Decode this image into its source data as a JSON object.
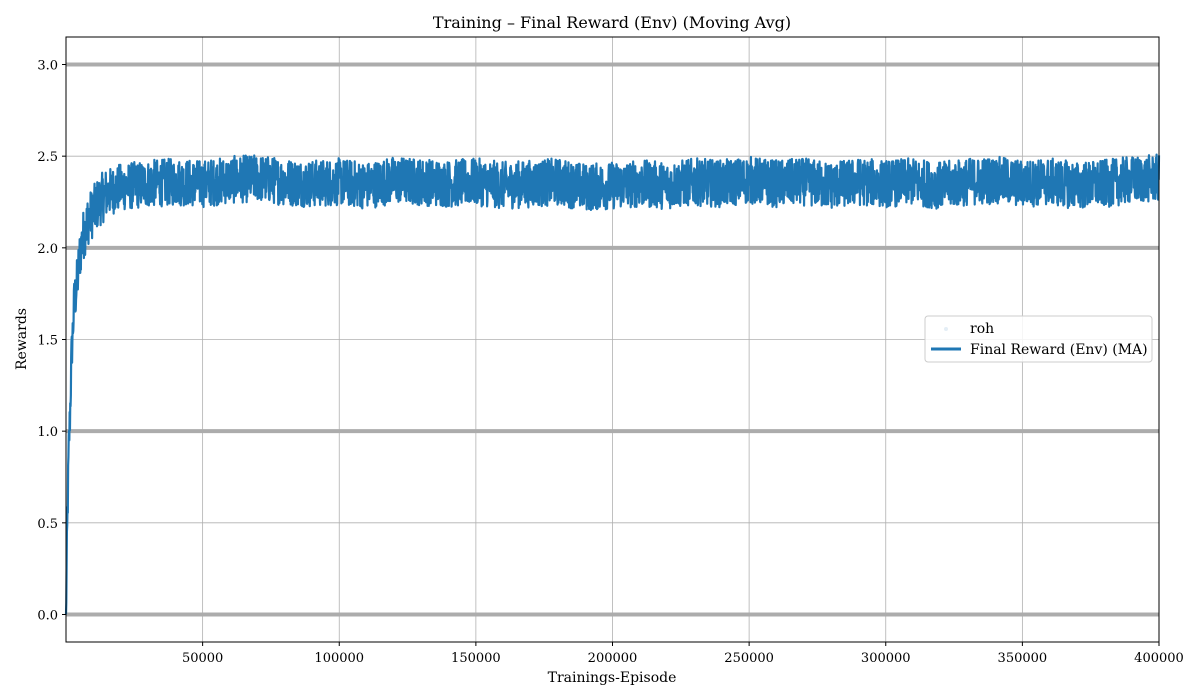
{
  "chart_data": {
    "type": "line",
    "title": "Training – Final Reward (Env) (Moving Avg)",
    "xlabel": "Trainings-Episode",
    "ylabel": "Rewards",
    "xlim": [
      0,
      400000
    ],
    "ylim": [
      -0.15,
      3.15
    ],
    "xticks": [
      50000,
      100000,
      150000,
      200000,
      250000,
      300000,
      350000,
      400000
    ],
    "yticks": [
      0.0,
      0.5,
      1.0,
      1.5,
      2.0,
      2.5,
      3.0
    ],
    "ytick_labels": [
      "0.0",
      "0.5",
      "1.0",
      "1.5",
      "2.0",
      "2.5",
      "3.0"
    ],
    "grid": true,
    "reference_lines": [
      0,
      1,
      2,
      3
    ],
    "legend_position": "center-right",
    "legend": [
      {
        "name": "roh",
        "style": "faint-points"
      },
      {
        "name": "Final Reward (Env) (MA)",
        "style": "line"
      }
    ],
    "series": [
      {
        "name": "Final Reward (Env) (MA)",
        "color": "#1f77b4",
        "x": [
          0,
          500,
          1000,
          1500,
          2000,
          3000,
          4000,
          5000,
          6000,
          7000,
          8000,
          10000,
          12000,
          15000,
          20000,
          25000,
          30000,
          40000,
          50000,
          60000,
          70000,
          80000,
          90000,
          100000,
          110000,
          120000,
          130000,
          140000,
          150000,
          160000,
          170000,
          180000,
          190000,
          200000,
          210000,
          220000,
          230000,
          240000,
          250000,
          260000,
          270000,
          280000,
          290000,
          300000,
          310000,
          320000,
          330000,
          340000,
          350000,
          360000,
          370000,
          380000,
          390000,
          400000
        ],
        "values": [
          0.0,
          0.5,
          0.9,
          1.1,
          1.4,
          1.7,
          1.8,
          1.95,
          2.05,
          2.1,
          2.15,
          2.2,
          2.25,
          2.3,
          2.33,
          2.34,
          2.35,
          2.36,
          2.35,
          2.37,
          2.38,
          2.36,
          2.35,
          2.36,
          2.34,
          2.37,
          2.36,
          2.35,
          2.36,
          2.34,
          2.35,
          2.36,
          2.33,
          2.34,
          2.35,
          2.34,
          2.36,
          2.35,
          2.37,
          2.35,
          2.36,
          2.34,
          2.36,
          2.35,
          2.36,
          2.34,
          2.36,
          2.37,
          2.35,
          2.36,
          2.34,
          2.35,
          2.37,
          2.38
        ],
        "noise_band": [
          2.12,
          2.6
        ]
      }
    ]
  }
}
